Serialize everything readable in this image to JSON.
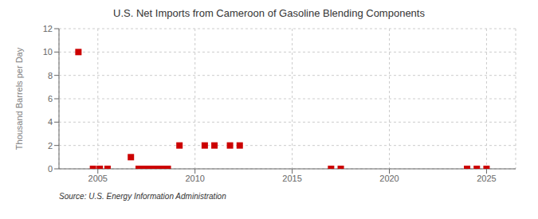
{
  "chart_data": {
    "type": "scatter",
    "title": "U.S. Net Imports from Cameroon of Gasoline Blending Components",
    "ylabel": "Thousand Barrels per Day",
    "annotations": [
      "Source: U.S. Energy Information Administration"
    ],
    "color": "#cc0000",
    "marker": "square",
    "grid": true,
    "xlim": [
      2003.0,
      2026.5
    ],
    "ylim": [
      0,
      12
    ],
    "xticks": [
      2005,
      2010,
      2015,
      2020,
      2025
    ],
    "yticks": [
      0,
      2,
      4,
      6,
      8,
      10,
      12
    ],
    "x": [
      2004.0,
      2004.75,
      2005.1,
      2005.5,
      2006.7,
      2007.1,
      2007.4,
      2007.6,
      2007.9,
      2008.1,
      2008.3,
      2008.6,
      2009.2,
      2010.5,
      2011.0,
      2011.8,
      2012.3,
      2017.0,
      2017.5,
      2024.0,
      2024.5,
      2025.0
    ],
    "values": [
      10.0,
      0.0,
      0.0,
      0.0,
      1.0,
      0.0,
      0.0,
      0.0,
      0.0,
      0.0,
      0.0,
      0.0,
      2.0,
      2.0,
      2.0,
      2.0,
      2.0,
      0.0,
      0.0,
      0.0,
      0.0,
      0.0
    ]
  }
}
